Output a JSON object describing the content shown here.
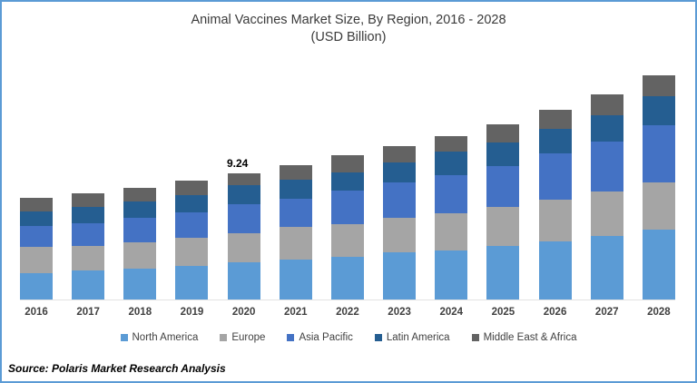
{
  "title": {
    "line1": "Animal Vaccines Market Size, By Region, 2016 - 2028",
    "line2": "(USD Billion)"
  },
  "source": {
    "text": "Source: Polaris Market Research Analysis"
  },
  "frame_border_color": "#5B9BD5",
  "chart_data": {
    "type": "bar",
    "stacked": true,
    "title": "Animal Vaccines Market Size, By Region, 2016 - 2028 (USD Billion)",
    "xlabel": "",
    "ylabel": "",
    "y_axis_visible": false,
    "gridlines": false,
    "legend_position": "bottom",
    "categories": [
      "2016",
      "2017",
      "2018",
      "2019",
      "2020",
      "2021",
      "2022",
      "2023",
      "2024",
      "2025",
      "2026",
      "2027",
      "2028"
    ],
    "series": [
      {
        "name": "North America",
        "color": "#5B9BD5",
        "values": [
          1.95,
          2.12,
          2.25,
          2.43,
          2.73,
          2.91,
          3.13,
          3.42,
          3.6,
          3.9,
          4.21,
          4.63,
          5.07
        ]
      },
      {
        "name": "Europe",
        "color": "#A5A5A5",
        "values": [
          1.87,
          1.82,
          1.9,
          2.05,
          2.1,
          2.36,
          2.36,
          2.51,
          2.69,
          2.84,
          3.06,
          3.27,
          3.49
        ]
      },
      {
        "name": "Asia Pacific",
        "color": "#4472C4",
        "values": [
          1.57,
          1.6,
          1.8,
          1.87,
          2.12,
          2.05,
          2.43,
          2.6,
          2.76,
          3.02,
          3.37,
          3.64,
          4.14
        ]
      },
      {
        "name": "Latin America",
        "color": "#255E91",
        "values": [
          1.06,
          1.2,
          1.22,
          1.3,
          1.37,
          1.43,
          1.35,
          1.5,
          1.72,
          1.7,
          1.83,
          1.92,
          2.14
        ]
      },
      {
        "name": "Middle East & Africa",
        "color": "#636363",
        "values": [
          0.94,
          1.03,
          1.0,
          1.0,
          0.92,
          1.04,
          1.25,
          1.19,
          1.14,
          1.32,
          1.37,
          1.54,
          1.52
        ]
      }
    ],
    "data_labels": [
      {
        "category": "2020",
        "value": "9.24"
      }
    ],
    "totals_estimated": [
      7.39,
      7.77,
      8.17,
      8.65,
      9.24,
      9.79,
      10.52,
      11.22,
      11.91,
      12.78,
      13.84,
      15.0,
      16.36
    ]
  }
}
